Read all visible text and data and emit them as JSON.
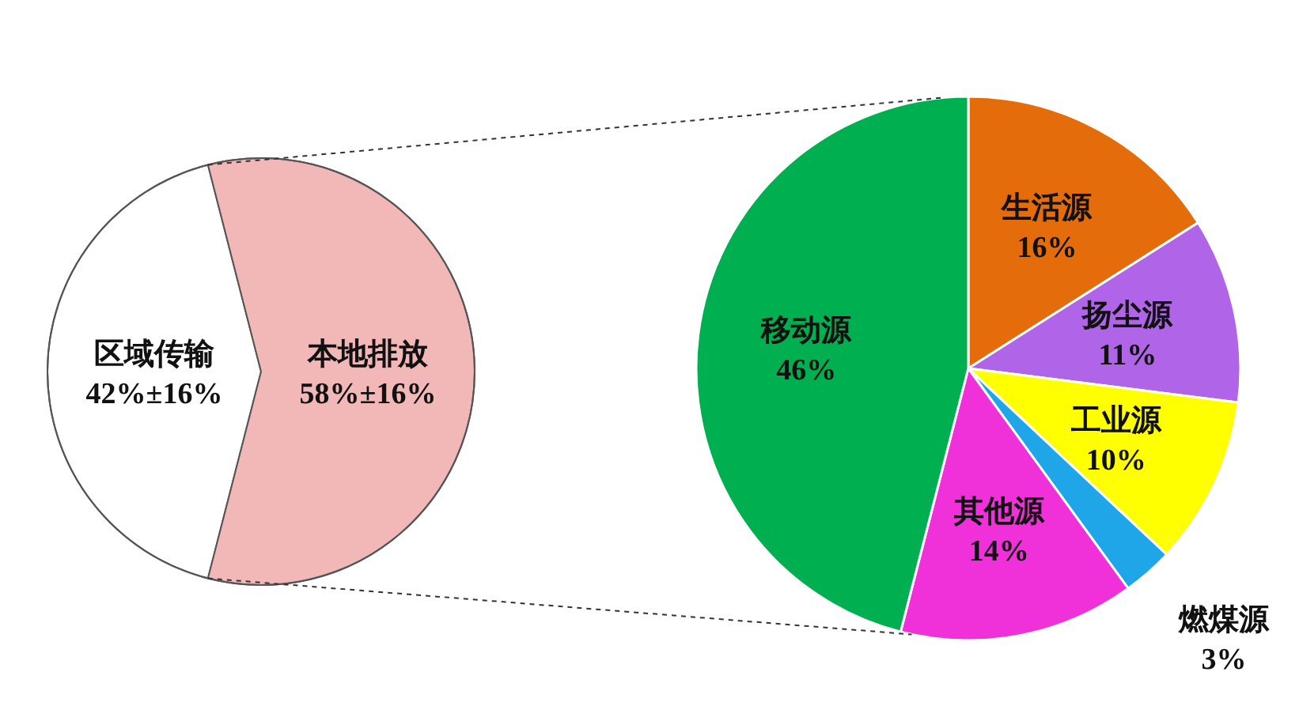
{
  "chart_data": [
    {
      "type": "pie",
      "categories": [
        "区域传输",
        "本地排放"
      ],
      "values": [
        42,
        58
      ],
      "colors": [
        "#ffffff",
        "#f2b8b8"
      ],
      "value_labels": [
        "42%±16%",
        "58%±16%"
      ]
    },
    {
      "type": "pie",
      "categories": [
        "生活源",
        "扬尘源",
        "工业源",
        "燃煤源",
        "其他源",
        "移动源"
      ],
      "values": [
        16,
        11,
        10,
        3,
        14,
        46
      ],
      "colors": [
        "#e46c0a",
        "#b064e8",
        "#ffff00",
        "#1ea6e8",
        "#f030d8",
        "#00b050"
      ],
      "value_labels": [
        "16%",
        "11%",
        "10%",
        "3%",
        "14%",
        "46%"
      ]
    }
  ]
}
